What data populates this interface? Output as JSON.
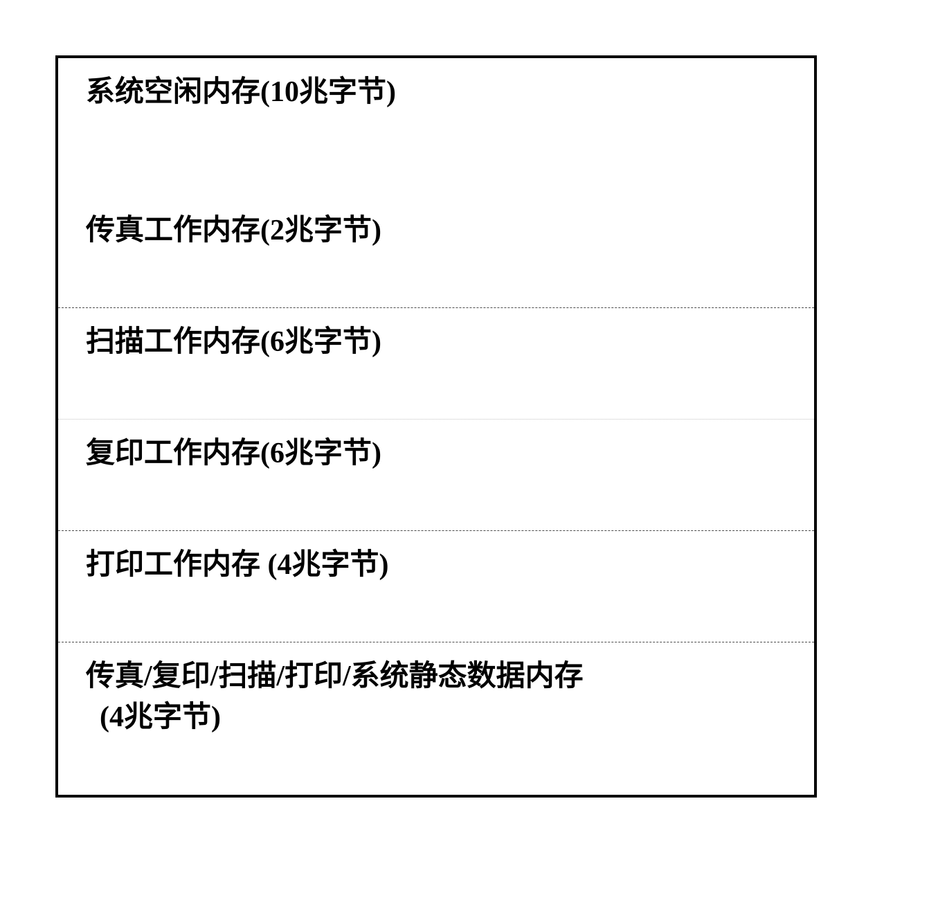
{
  "memory_diagram": {
    "type": "table",
    "border_color": "#000000",
    "border_width": 4,
    "background_color": "#ffffff",
    "text_color": "#000000",
    "font_size": 42,
    "font_weight": "bold",
    "rows": [
      {
        "label": "系统空闲内存(10兆字节)",
        "size_mb": 10,
        "height": "tall",
        "divider_style": "none"
      },
      {
        "label": "传真工作内存(2兆字节)",
        "size_mb": 2,
        "height": "short",
        "divider_style": "dotted"
      },
      {
        "label": "扫描工作内存(6兆字节)",
        "size_mb": 6,
        "height": "short",
        "divider_style": "light"
      },
      {
        "label": "复印工作内存(6兆字节)",
        "size_mb": 6,
        "height": "short",
        "divider_style": "dotted"
      },
      {
        "label": "打印工作内存 (4兆字节)",
        "size_mb": 4,
        "height": "short",
        "divider_style": "dotted"
      },
      {
        "label_line1": "传真/复印/扫描/打印/系统静态数据内存",
        "label_line2": "(4兆字节)",
        "size_mb": 4,
        "height": "last",
        "divider_style": "none"
      }
    ]
  }
}
